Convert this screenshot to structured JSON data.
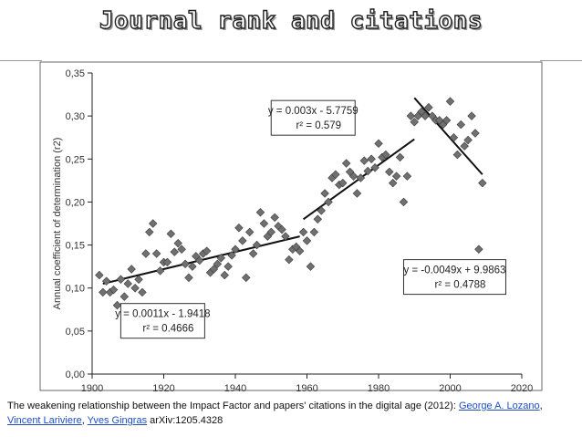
{
  "slide": {
    "title": "Journal rank and citations"
  },
  "caption": {
    "text_before": "The weakening relationship between the Impact Factor and papers' citations in the digital age (2012): ",
    "author1": "George A. Lozano",
    "sep1": ", ",
    "author2": "Vincent Lariviere",
    "sep2": ", ",
    "author3": "Yves Gingras",
    "text_after": " arXiv:1205.4328"
  },
  "chart_data": {
    "type": "scatter",
    "title": "",
    "xlabel": "",
    "ylabel": "Annual coefficient of determination (r2)",
    "xlim": [
      1900,
      2020
    ],
    "ylim": [
      0,
      0.35
    ],
    "x_ticks": [
      "1900",
      "1920",
      "1940",
      "1960",
      "1980",
      "2000",
      "2020"
    ],
    "y_ticks": [
      "0,00",
      "0,05",
      "0,10",
      "0,15",
      "0,20",
      "0,25",
      "0,30",
      "0,35"
    ],
    "grid": false,
    "marker": "diamond",
    "marker_color": "#707070",
    "points": [
      [
        1902,
        0.115
      ],
      [
        1903,
        0.095
      ],
      [
        1904,
        0.108
      ],
      [
        1905,
        0.095
      ],
      [
        1906,
        0.098
      ],
      [
        1907,
        0.08
      ],
      [
        1908,
        0.11
      ],
      [
        1909,
        0.09
      ],
      [
        1910,
        0.105
      ],
      [
        1911,
        0.122
      ],
      [
        1912,
        0.1
      ],
      [
        1913,
        0.11
      ],
      [
        1914,
        0.095
      ],
      [
        1915,
        0.14
      ],
      [
        1916,
        0.165
      ],
      [
        1917,
        0.175
      ],
      [
        1918,
        0.14
      ],
      [
        1919,
        0.12
      ],
      [
        1920,
        0.13
      ],
      [
        1921,
        0.13
      ],
      [
        1922,
        0.163
      ],
      [
        1923,
        0.142
      ],
      [
        1924,
        0.152
      ],
      [
        1925,
        0.145
      ],
      [
        1926,
        0.128
      ],
      [
        1927,
        0.112
      ],
      [
        1928,
        0.125
      ],
      [
        1929,
        0.137
      ],
      [
        1930,
        0.132
      ],
      [
        1931,
        0.14
      ],
      [
        1932,
        0.143
      ],
      [
        1933,
        0.118
      ],
      [
        1934,
        0.122
      ],
      [
        1935,
        0.128
      ],
      [
        1936,
        0.135
      ],
      [
        1937,
        0.115
      ],
      [
        1938,
        0.125
      ],
      [
        1939,
        0.138
      ],
      [
        1940,
        0.145
      ],
      [
        1941,
        0.17
      ],
      [
        1942,
        0.155
      ],
      [
        1943,
        0.112
      ],
      [
        1944,
        0.165
      ],
      [
        1945,
        0.14
      ],
      [
        1946,
        0.15
      ],
      [
        1947,
        0.188
      ],
      [
        1948,
        0.175
      ],
      [
        1949,
        0.16
      ],
      [
        1950,
        0.165
      ],
      [
        1951,
        0.182
      ],
      [
        1952,
        0.172
      ],
      [
        1953,
        0.168
      ],
      [
        1954,
        0.16
      ],
      [
        1955,
        0.133
      ],
      [
        1956,
        0.145
      ],
      [
        1957,
        0.148
      ],
      [
        1958,
        0.143
      ],
      [
        1959,
        0.165
      ],
      [
        1960,
        0.155
      ],
      [
        1961,
        0.125
      ],
      [
        1962,
        0.165
      ],
      [
        1963,
        0.18
      ],
      [
        1964,
        0.19
      ],
      [
        1965,
        0.21
      ],
      [
        1966,
        0.2
      ],
      [
        1967,
        0.228
      ],
      [
        1968,
        0.232
      ],
      [
        1969,
        0.22
      ],
      [
        1970,
        0.222
      ],
      [
        1971,
        0.245
      ],
      [
        1972,
        0.235
      ],
      [
        1973,
        0.23
      ],
      [
        1974,
        0.21
      ],
      [
        1975,
        0.228
      ],
      [
        1976,
        0.248
      ],
      [
        1977,
        0.236
      ],
      [
        1978,
        0.25
      ],
      [
        1979,
        0.24
      ],
      [
        1980,
        0.268
      ],
      [
        1981,
        0.252
      ],
      [
        1982,
        0.255
      ],
      [
        1983,
        0.235
      ],
      [
        1984,
        0.222
      ],
      [
        1985,
        0.23
      ],
      [
        1986,
        0.252
      ],
      [
        1987,
        0.2
      ],
      [
        1988,
        0.23
      ],
      [
        1989,
        0.3
      ],
      [
        1990,
        0.293
      ],
      [
        1991,
        0.3
      ],
      [
        1992,
        0.305
      ],
      [
        1993,
        0.3
      ],
      [
        1994,
        0.31
      ],
      [
        1995,
        0.3
      ],
      [
        1996,
        0.295
      ],
      [
        1997,
        0.295
      ],
      [
        1998,
        0.29
      ],
      [
        1999,
        0.295
      ],
      [
        2000,
        0.317
      ],
      [
        2001,
        0.275
      ],
      [
        2002,
        0.255
      ],
      [
        2003,
        0.29
      ],
      [
        2004,
        0.265
      ],
      [
        2005,
        0.272
      ],
      [
        2006,
        0.3
      ],
      [
        2007,
        0.28
      ],
      [
        2008,
        0.145
      ],
      [
        2009,
        0.222
      ]
    ],
    "trendlines": [
      {
        "x_range": [
          1903,
          1958
        ],
        "slope": 0.0011,
        "intercept": -1.9418,
        "equation": "y = 0.0011x - 1.9418",
        "r2": "r² = 0.4666"
      },
      {
        "x_range": [
          1959,
          1990
        ],
        "slope": 0.003,
        "intercept": -5.7759,
        "equation": "y = 0.003x - 5.7759",
        "r2": "r² = 0.579"
      },
      {
        "x_range": [
          1990,
          2009
        ],
        "slope": -0.0049,
        "intercept": 9.9863,
        "equation": "y = -0.0049x + 9.9863",
        "r2": "r² = 0.4788"
      }
    ],
    "trendline_endpoints": [
      [
        [
          1903,
          0.105
        ],
        [
          1958,
          0.16
        ]
      ],
      [
        [
          1959,
          0.18
        ],
        [
          1990,
          0.273
        ]
      ],
      [
        [
          1990,
          0.321
        ],
        [
          2009,
          0.232
        ]
      ]
    ],
    "annotation_anchors": [
      {
        "x": 1908,
        "y": 0.082
      },
      {
        "x": 1950,
        "y": 0.318
      },
      {
        "x": 1987,
        "y": 0.133
      }
    ]
  }
}
